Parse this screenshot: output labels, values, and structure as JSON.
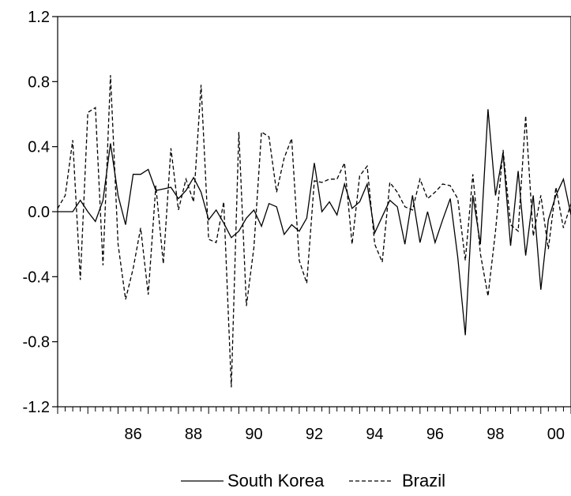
{
  "chart_data": {
    "type": "line",
    "xlim": [
      1984.0,
      2001.0
    ],
    "ylim": [
      -1.2,
      1.2
    ],
    "x_ticks": [
      86,
      88,
      90,
      92,
      94,
      96,
      98,
      0
    ],
    "x_tick_labels": [
      "86",
      "88",
      "90",
      "92",
      "94",
      "96",
      "98",
      "00"
    ],
    "y_ticks": [
      1.2,
      0.8,
      0.4,
      0.0,
      -0.4,
      -0.8,
      -1.2
    ],
    "y_tick_labels": [
      "1.2",
      "0.8",
      "0.4",
      "0.0",
      "-0.4",
      "-0.8",
      "-1.2"
    ],
    "grid": false,
    "legend_position": "bottom-center",
    "series": [
      {
        "name": "South Korea",
        "style": "solid",
        "color": "#000000",
        "x": [
          1984.0,
          1984.25,
          1984.5,
          1984.75,
          1985.0,
          1985.25,
          1985.5,
          1985.75,
          1986.0,
          1986.25,
          1986.5,
          1986.75,
          1987.0,
          1987.25,
          1987.5,
          1987.75,
          1988.0,
          1988.25,
          1988.5,
          1988.75,
          1989.0,
          1989.25,
          1989.5,
          1989.75,
          1990.0,
          1990.25,
          1990.5,
          1990.75,
          1991.0,
          1991.25,
          1991.5,
          1991.75,
          1992.0,
          1992.25,
          1992.5,
          1992.75,
          1993.0,
          1993.25,
          1993.5,
          1993.75,
          1994.0,
          1994.25,
          1994.5,
          1994.75,
          1995.0,
          1995.25,
          1995.5,
          1995.75,
          1996.0,
          1996.25,
          1996.5,
          1996.75,
          1997.0,
          1997.25,
          1997.5,
          1997.75,
          1998.0,
          1998.25,
          1998.5,
          1998.75,
          1999.0,
          1999.25,
          1999.5,
          1999.75,
          2000.0,
          2000.25,
          2000.5,
          2000.75,
          2001.0
        ],
        "values": [
          0.0,
          0.0,
          0.0,
          0.07,
          0.0,
          -0.06,
          0.07,
          0.42,
          0.1,
          -0.08,
          0.23,
          0.23,
          0.26,
          0.13,
          0.14,
          0.15,
          0.08,
          0.13,
          0.21,
          0.12,
          -0.05,
          0.01,
          -0.07,
          -0.16,
          -0.12,
          -0.04,
          0.01,
          -0.09,
          0.05,
          0.03,
          -0.14,
          -0.08,
          -0.12,
          -0.04,
          0.3,
          0.0,
          0.06,
          -0.02,
          0.17,
          0.02,
          0.06,
          0.17,
          -0.13,
          -0.03,
          0.07,
          0.03,
          -0.2,
          0.1,
          -0.19,
          0.0,
          -0.19,
          -0.05,
          0.08,
          -0.28,
          -0.76,
          0.1,
          -0.2,
          0.63,
          0.1,
          0.36,
          -0.21,
          0.25,
          -0.27,
          0.1,
          -0.48,
          -0.05,
          0.1,
          0.2,
          -0.02
        ]
      },
      {
        "name": "Brazil",
        "style": "dashed",
        "color": "#000000",
        "x": [
          1984.0,
          1984.25,
          1984.5,
          1984.75,
          1985.0,
          1985.25,
          1985.5,
          1985.75,
          1986.0,
          1986.25,
          1986.5,
          1986.75,
          1987.0,
          1987.25,
          1987.5,
          1987.75,
          1988.0,
          1988.25,
          1988.5,
          1988.75,
          1989.0,
          1989.25,
          1989.5,
          1989.75,
          1990.0,
          1990.25,
          1990.5,
          1990.75,
          1991.0,
          1991.25,
          1991.5,
          1991.75,
          1992.0,
          1992.25,
          1992.5,
          1992.75,
          1993.0,
          1993.25,
          1993.5,
          1993.75,
          1994.0,
          1994.25,
          1994.5,
          1994.75,
          1995.0,
          1995.25,
          1995.5,
          1995.75,
          1996.0,
          1996.25,
          1996.5,
          1996.75,
          1997.0,
          1997.25,
          1997.5,
          1997.75,
          1998.0,
          1998.25,
          1998.5,
          1998.75,
          1999.0,
          1999.25,
          1999.5,
          1999.75,
          2000.0,
          2000.25,
          2000.5,
          2000.75,
          2001.0
        ],
        "values": [
          0.02,
          0.1,
          0.44,
          -0.42,
          0.61,
          0.64,
          -0.33,
          0.84,
          -0.2,
          -0.54,
          -0.35,
          -0.1,
          -0.51,
          0.16,
          -0.32,
          0.39,
          0.01,
          0.2,
          0.06,
          0.78,
          -0.17,
          -0.19,
          0.06,
          -1.08,
          0.49,
          -0.58,
          -0.22,
          0.49,
          0.46,
          0.12,
          0.33,
          0.45,
          -0.3,
          -0.44,
          0.19,
          0.18,
          0.2,
          0.2,
          0.3,
          -0.2,
          0.22,
          0.28,
          -0.2,
          -0.31,
          0.18,
          0.12,
          0.03,
          0.01,
          0.2,
          0.08,
          0.12,
          0.17,
          0.16,
          0.08,
          -0.3,
          0.23,
          -0.26,
          -0.52,
          -0.12,
          0.38,
          -0.08,
          -0.12,
          0.59,
          -0.15,
          0.1,
          -0.23,
          0.15,
          -0.1,
          0.05
        ]
      }
    ]
  }
}
